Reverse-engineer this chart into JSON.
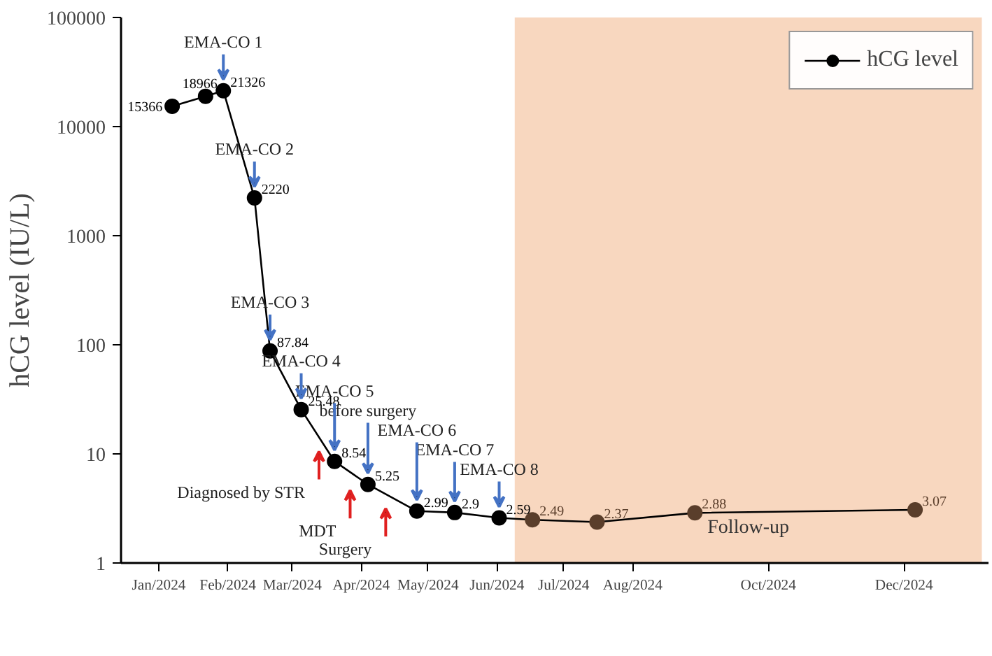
{
  "chart_data": {
    "type": "line",
    "ylabel": "hCG level (IU/L)",
    "log": "y",
    "xlim": [
      "2023-12-15",
      "2025-01-08"
    ],
    "ylim": [
      1,
      100000
    ],
    "xticks": [
      {
        "value": "2024-01-01",
        "label": "Jan/2024"
      },
      {
        "value": "2024-02-01",
        "label": "Feb/2024"
      },
      {
        "value": "2024-03-01",
        "label": "Mar/2024"
      },
      {
        "value": "2024-04-01",
        "label": "Apr/2024"
      },
      {
        "value": "2024-05-01",
        "label": "May/2024"
      },
      {
        "value": "2024-06-01",
        "label": "Jun/2024"
      },
      {
        "value": "2024-07-01",
        "label": "Jul/2024"
      },
      {
        "value": "2024-08-01",
        "label": "Aug/2024"
      },
      {
        "value": "2024-10-01",
        "label": "Oct/2024"
      },
      {
        "value": "2024-12-01",
        "label": "Dec/2024"
      }
    ],
    "yticks": [
      1,
      10,
      100,
      1000,
      10000,
      100000
    ],
    "x": [
      "2024-01-07",
      "2024-01-22",
      "2024-01-30",
      "2024-02-13",
      "2024-02-20",
      "2024-03-05",
      "2024-03-20",
      "2024-04-04",
      "2024-04-26",
      "2024-05-13",
      "2024-06-02",
      "2024-06-17",
      "2024-07-16",
      "2024-08-29",
      "2024-12-06"
    ],
    "series": [
      {
        "name": "hCG level",
        "color": "#000000",
        "values": [
          15366,
          18966,
          21326,
          2220,
          87.84,
          25.48,
          8.54,
          5.25,
          2.99,
          2.9,
          2.59,
          2.49,
          2.37,
          2.88,
          3.07
        ],
        "colors": [
          "#000000",
          "#000000",
          "#000000",
          "#000000",
          "#000000",
          "#000000",
          "#000000",
          "#000000",
          "#000000",
          "#000000",
          "#000000",
          "#5a3e2b",
          "#5a3e2b",
          "#5a3e2b",
          "#5a3e2b"
        ]
      }
    ],
    "marker": "circle",
    "data_labels": true,
    "legend": "top right",
    "bands": [
      {
        "axis": "x",
        "from": "2024-06-09",
        "to": "2025-01-05",
        "label": "Follow-up",
        "color": "#f8d7bf"
      }
    ],
    "annotations": [
      {
        "text": "EMA-CO 1",
        "x": "2024-01-30",
        "y": 21326
      },
      {
        "text": "EMA-CO 2",
        "x": "2024-02-13",
        "y": 2220
      },
      {
        "text": "EMA-CO 3",
        "x": "2024-02-20",
        "y": 87.84
      },
      {
        "text": "EMA-CO 4",
        "x": "2024-03-05",
        "y": 25.48
      },
      {
        "text": "EMA-CO 5",
        "x": "2024-03-20",
        "y": 8.54
      },
      {
        "text": "before surgery",
        "x": "2024-04-04",
        "y": 5.25
      },
      {
        "text": "EMA-CO 6",
        "x": "2024-04-26",
        "y": 2.99
      },
      {
        "text": "EMA-CO 7",
        "x": "2024-05-13",
        "y": 2.9
      },
      {
        "text": "EMA-CO 8",
        "x": "2024-06-02",
        "y": 2.59
      },
      {
        "text": "Diagnosed by STR",
        "x": "2024-03-13",
        "y": 15
      },
      {
        "text": "MDT",
        "x": "2024-03-27",
        "y": 6.6
      },
      {
        "text": "Surgery",
        "x": "2024-04-12",
        "y": 4.5
      }
    ]
  }
}
